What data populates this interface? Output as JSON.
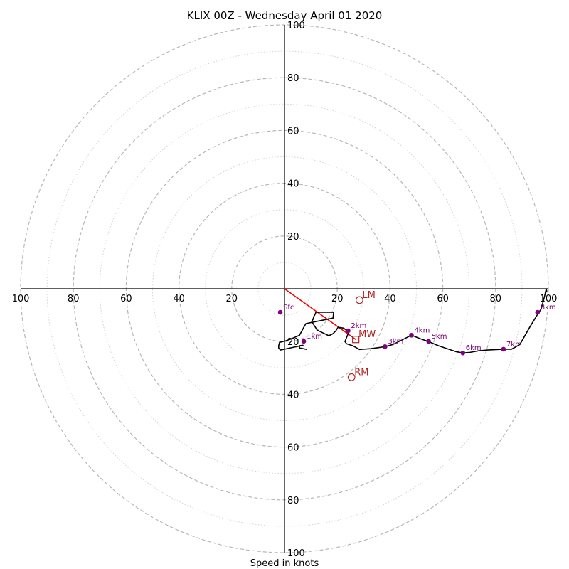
{
  "chart_data": {
    "type": "hodograph",
    "title": "KLIX 00Z - Wednesday April 01 2020",
    "xlabel": "Speed in knots",
    "xlim": [
      -100,
      100
    ],
    "ylim": [
      -100,
      100
    ],
    "rings": [
      10,
      20,
      30,
      40,
      50,
      60,
      70,
      80,
      90,
      100
    ],
    "x_ticks": [
      {
        "value": -100,
        "label": "100"
      },
      {
        "value": -80,
        "label": "80"
      },
      {
        "value": -60,
        "label": "60"
      },
      {
        "value": -40,
        "label": "40"
      },
      {
        "value": -20,
        "label": "20"
      },
      {
        "value": 20,
        "label": "20"
      },
      {
        "value": 40,
        "label": "40"
      },
      {
        "value": 60,
        "label": "60"
      },
      {
        "value": 80,
        "label": "80"
      },
      {
        "value": 100,
        "label": "100"
      }
    ],
    "y_ticks": [
      {
        "value": 100,
        "label": "100"
      },
      {
        "value": 80,
        "label": "80"
      },
      {
        "value": 60,
        "label": "60"
      },
      {
        "value": 40,
        "label": "40"
      },
      {
        "value": 20,
        "label": "20"
      },
      {
        "value": -20,
        "label": "20"
      },
      {
        "value": -40,
        "label": "40"
      },
      {
        "value": -60,
        "label": "60"
      },
      {
        "value": -80,
        "label": "80"
      },
      {
        "value": -100,
        "label": "100"
      }
    ],
    "trace": {
      "u": [
        8.6,
        5.7,
        5.7,
        7.0,
        -1.6,
        -2.2,
        -2.2,
        -1.9,
        0.5,
        2.5,
        5.7,
        7.3,
        8.1,
        18.4,
        18.6,
        11.9,
        11.6,
        11.1,
        10.8,
        10.3,
        12.4,
        16.8,
        18.4,
        19.5,
        20.3,
        22.4,
        24.3,
        22.9,
        23.5,
        25.9,
        28.4,
        32.7,
        37.8,
        41.1,
        44.3,
        48.1,
        51.4,
        54.6,
        58.4,
        64.9,
        67.6,
        70.3,
        73.5,
        77.0,
        83.0,
        86.0,
        89.2,
        93.2,
        95.9,
        97.3,
        98.6,
        99.2,
        99.5
      ],
      "v": [
        -23.0,
        -22.4,
        -21.6,
        -21.4,
        -23.2,
        -22.4,
        -21.6,
        -20.3,
        -19.7,
        -19.0,
        -17.6,
        -14.6,
        -13.2,
        -11.1,
        -8.9,
        -8.9,
        -9.7,
        -10.5,
        -11.6,
        -12.4,
        -15.7,
        -17.8,
        -17.0,
        -15.9,
        -14.6,
        -14.9,
        -16.5,
        -20.0,
        -20.8,
        -21.6,
        -23.0,
        -22.7,
        -22.0,
        -21.1,
        -19.5,
        -17.6,
        -18.9,
        -20.0,
        -21.6,
        -23.8,
        -24.3,
        -24.1,
        -23.5,
        -23.2,
        -22.9,
        -22.9,
        -21.1,
        -14.1,
        -9.7,
        -7.6,
        -2.7,
        0.0,
        -1.4
      ]
    },
    "height_points": [
      {
        "label": "Sfc",
        "u": -1.6,
        "v": -8.9
      },
      {
        "label": "1km",
        "u": 7.3,
        "v": -19.9
      },
      {
        "label": "2km",
        "u": 24.1,
        "v": -15.9
      },
      {
        "label": "3km",
        "u": 38.1,
        "v": -21.9
      },
      {
        "label": "4km",
        "u": 48.1,
        "v": -17.6
      },
      {
        "label": "5km",
        "u": 54.6,
        "v": -19.9
      },
      {
        "label": "6km",
        "u": 67.6,
        "v": -24.3
      },
      {
        "label": "7km",
        "u": 83.0,
        "v": -22.9
      },
      {
        "label": "8km",
        "u": 95.9,
        "v": -8.9
      }
    ],
    "storm_motions": [
      {
        "label": "LM",
        "u": 28.4,
        "v": -4.3,
        "marker": "circle"
      },
      {
        "label": "MW",
        "u": 27.0,
        "v": -19.2,
        "marker": "square"
      },
      {
        "label": "RM",
        "u": 25.4,
        "v": -33.5,
        "marker": "circle"
      }
    ],
    "shear_vector": {
      "u0": 0,
      "v0": 0,
      "u1": 27.0,
      "v1": -19.2
    },
    "colors": {
      "trace": "#000000",
      "height_points": "#800080",
      "storm_motion": "#b22222",
      "shear_vector": "#ff0000",
      "ring_major": "#b7b7b7",
      "ring_minor": "#d3d3d3",
      "axes": "#000000"
    },
    "grid": true
  }
}
